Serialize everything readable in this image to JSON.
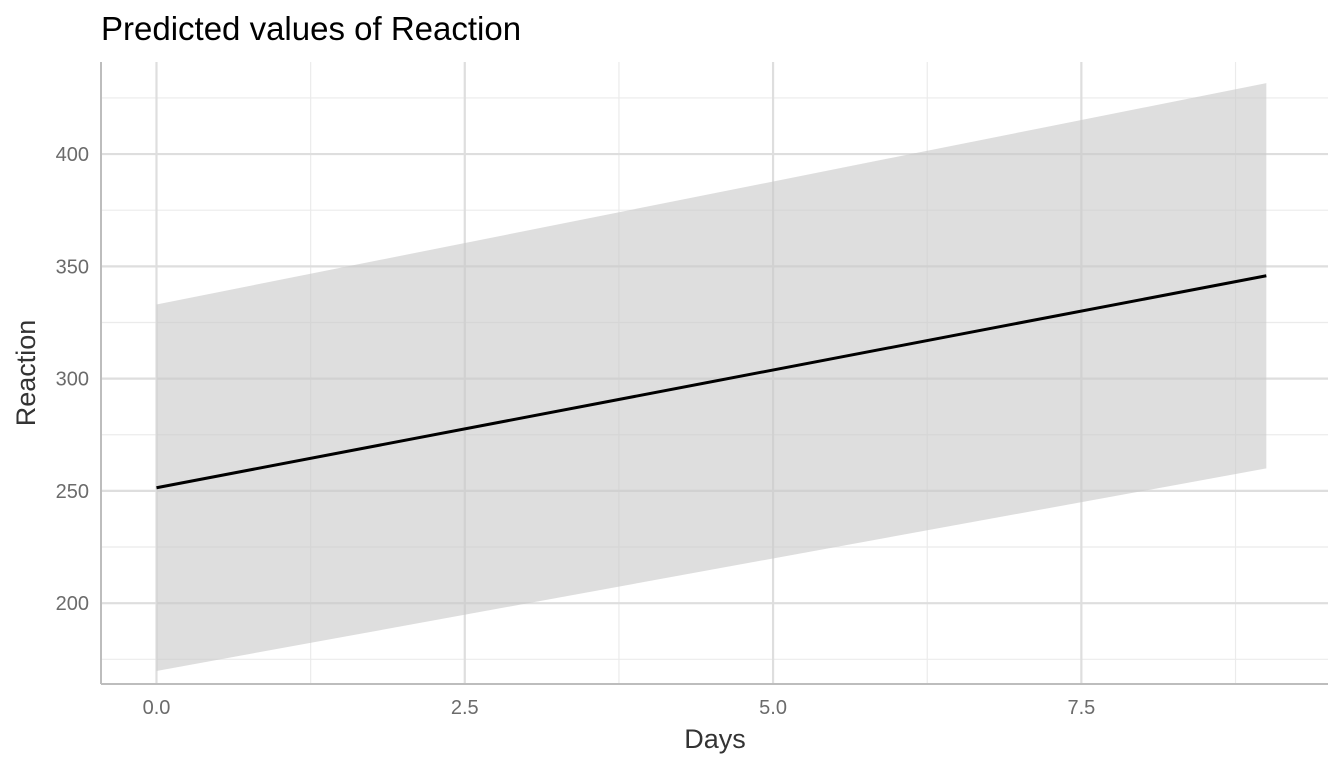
{
  "chart_data": {
    "type": "line",
    "title": "Predicted values of Reaction",
    "xlabel": "Days",
    "ylabel": "Reaction",
    "xlim": [
      -0.45,
      9.5
    ],
    "ylim": [
      164,
      441
    ],
    "x_ticks": [
      0,
      2.5,
      5,
      7.5
    ],
    "x_tick_labels": [
      "0.0",
      "2.5",
      "5.0",
      "7.5"
    ],
    "x_minor_gridlines": [
      1.25,
      3.75,
      6.25,
      8.75
    ],
    "y_ticks": [
      200,
      250,
      300,
      350,
      400
    ],
    "y_tick_labels": [
      "200",
      "250",
      "300",
      "350",
      "400"
    ],
    "y_minor_gridlines": [
      175,
      225,
      275,
      325,
      375,
      425
    ],
    "grid": true,
    "legend": "none",
    "series": [
      {
        "x": [
          0,
          9
        ],
        "y": [
          251.4,
          345.8
        ],
        "ci_lower": [
          169.8,
          260.0
        ],
        "ci_upper": [
          333.0,
          431.6
        ],
        "color": "#000000",
        "ribbon_color": "#c8c8c8"
      }
    ]
  }
}
